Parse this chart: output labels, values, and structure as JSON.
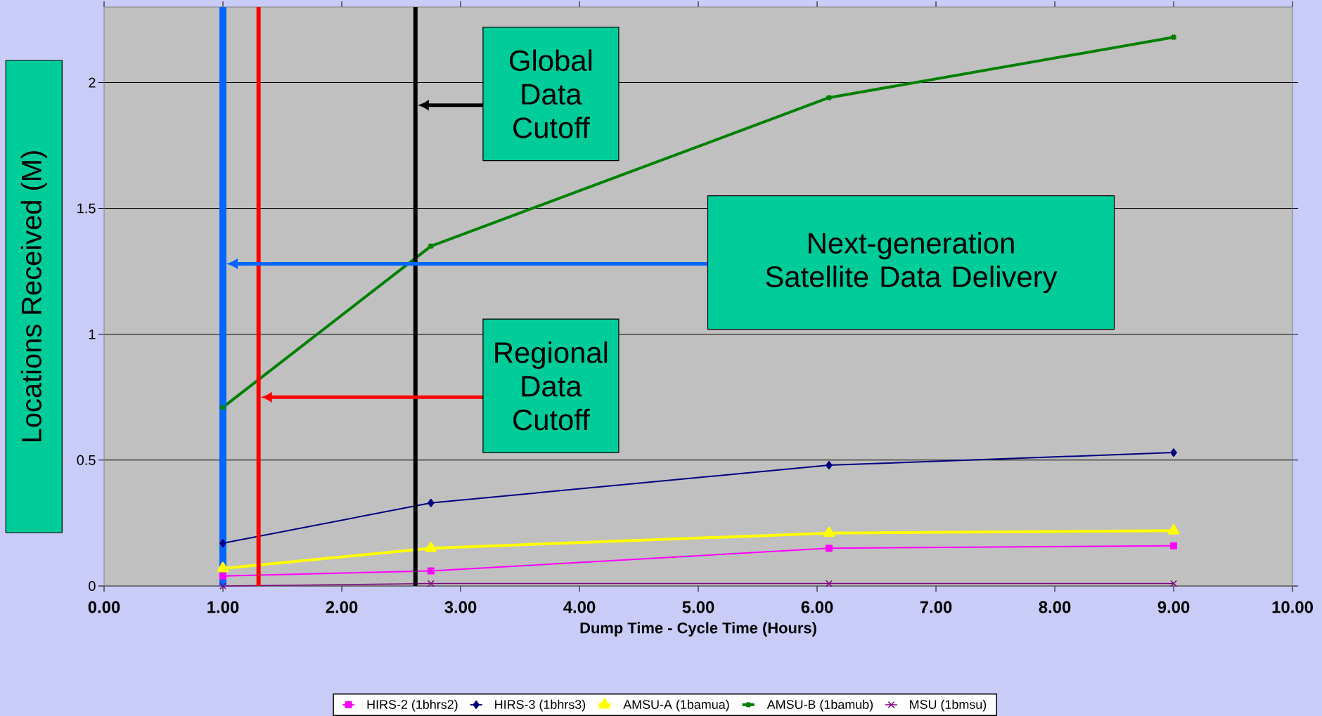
{
  "chart_data": {
    "type": "line",
    "xlabel": "Dump Time - Cycle Time (Hours)",
    "ylabel": "Locations Received (M)",
    "xlim": [
      0,
      10
    ],
    "ylim": [
      0,
      2.3
    ],
    "xticks": [
      {
        "value": 0,
        "label": "0.00"
      },
      {
        "value": 1,
        "label": "1.00"
      },
      {
        "value": 2,
        "label": "2.00"
      },
      {
        "value": 3,
        "label": "3.00"
      },
      {
        "value": 4,
        "label": "4.00"
      },
      {
        "value": 5,
        "label": "5.00"
      },
      {
        "value": 6,
        "label": "6.00"
      },
      {
        "value": 7,
        "label": "7.00"
      },
      {
        "value": 8,
        "label": "8.00"
      },
      {
        "value": 9,
        "label": "9.00"
      },
      {
        "value": 10,
        "label": "10.00"
      }
    ],
    "yticks": [
      0,
      0.5,
      1,
      1.5,
      2
    ],
    "grid": "y",
    "legend": "bottom",
    "x": [
      1.0,
      2.75,
      6.1,
      9.0
    ],
    "series": [
      {
        "name": "HIRS-2 (1bhrs2)",
        "color": "#ff00ff",
        "marker": "square",
        "values": [
          0.04,
          0.06,
          0.15,
          0.16
        ]
      },
      {
        "name": "HIRS-3 (1bhrs3)",
        "color": "#000080",
        "marker": "diamond",
        "values": [
          0.17,
          0.33,
          0.48,
          0.53
        ]
      },
      {
        "name": "AMSU-A (1bamua)",
        "color": "#ffff00",
        "marker": "triangle",
        "values": [
          0.07,
          0.15,
          0.21,
          0.22
        ]
      },
      {
        "name": "AMSU-B (1bamub)",
        "color": "#008000",
        "marker": "cross",
        "values": [
          0.71,
          1.35,
          1.94,
          2.18
        ]
      },
      {
        "name": "MSU (1bmsu)",
        "color": "#800080",
        "marker": "cross",
        "values": [
          0,
          0.01,
          0.01,
          0.01
        ]
      }
    ],
    "ref_lines": [
      {
        "axis": "x",
        "value": 1.0,
        "color": "#0066ff"
      },
      {
        "axis": "x",
        "value": 1.3,
        "color": "#ff0000"
      },
      {
        "axis": "x",
        "value": 2.62,
        "color": "#000000"
      }
    ],
    "annotations": [
      "Next-generation Satellite Data Delivery",
      "Regional Data Cutoff",
      "Global Data Cutoff"
    ]
  }
}
